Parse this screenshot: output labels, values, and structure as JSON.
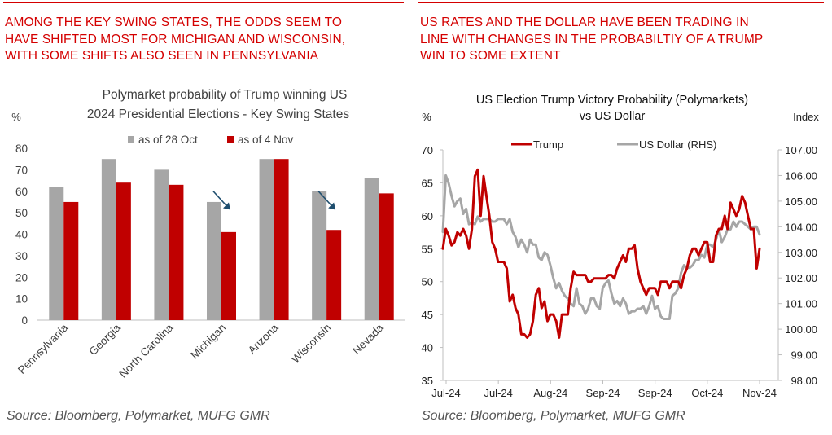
{
  "left_panel": {
    "headline": [
      "AMONG THE KEY SWING STATES, THE ODDS SEEM TO",
      "HAVE SHIFTED MOST FOR MICHIGAN AND WISCONSIN,",
      "WITH SOME SHIFTS ALSO SEEN IN PENNSYLVANIA"
    ],
    "source": "Source: Bloomberg, Polymarket, MUFG GMR"
  },
  "right_panel": {
    "headline": [
      "US RATES AND THE DOLLAR HAVE BEEN TRADING IN",
      "LINE WITH CHANGES IN THE PROBABILTIY OF A TRUMP",
      "WIN TO SOME EXTENT"
    ],
    "source": "Source: Bloomberg, Polymarket, MUFG GMR"
  },
  "colors": {
    "accent": "#d40000",
    "series_grey": "#a6a6a6",
    "series_red": "#c00000",
    "arrow": "#1f4e6e"
  },
  "chart_data": [
    {
      "type": "bar",
      "title": [
        "Polymarket probability of Trump winning US",
        "2024 Presidential Elections - Key Swing States"
      ],
      "ylabel": "%",
      "ylim": [
        0,
        80
      ],
      "yticks": [
        0,
        10,
        20,
        30,
        40,
        50,
        60,
        70,
        80
      ],
      "categories": [
        "Pennsylvania",
        "Georgia",
        "North Carolina",
        "Michigan",
        "Arizona",
        "Wisconsin",
        "Nevada"
      ],
      "series": [
        {
          "name": "as of 28 Oct",
          "color": "#a6a6a6",
          "values": [
            62,
            75,
            70,
            55,
            75,
            60,
            66
          ]
        },
        {
          "name": "as of 4 Nov",
          "color": "#c00000",
          "values": [
            55,
            64,
            63,
            41,
            75,
            42,
            59
          ]
        }
      ],
      "legend": "top",
      "annotations": [
        {
          "type": "down-arrow",
          "category": "Michigan"
        },
        {
          "type": "down-arrow",
          "category": "Wisconsin"
        }
      ]
    },
    {
      "type": "line",
      "title": [
        "US Election Trump Victory Probability (Polymarkets)",
        "vs US Dollar"
      ],
      "ylabel_right": "Index",
      "ylim_left": [
        35,
        70
      ],
      "yticks_left": [
        35,
        40,
        45,
        50,
        55,
        60,
        65,
        70
      ],
      "ylim_right": [
        98.0,
        107.0
      ],
      "yticks_right": [
        "98.00",
        "99.00",
        "100.00",
        "101.00",
        "102.00",
        "103.00",
        "104.00",
        "105.00",
        "106.00",
        "107.00"
      ],
      "x_tick_labels": [
        "Jul-24",
        "Jul-24",
        "Aug-24",
        "Sep-24",
        "Sep-24",
        "Oct-24",
        "Nov-24"
      ],
      "legend": "top",
      "series": [
        {
          "name": "Trump",
          "axis": "left",
          "color": "#c00000",
          "values": [
            55,
            58,
            57,
            55.5,
            56,
            57.5,
            57,
            58,
            57,
            55,
            58,
            66,
            67,
            60,
            66,
            63,
            60,
            56,
            55,
            53,
            53,
            53,
            52,
            47,
            48,
            46,
            45,
            42,
            42,
            41.5,
            42,
            44,
            48,
            49,
            46,
            47,
            44,
            45,
            45,
            44,
            41.5,
            45,
            45,
            45,
            49,
            51.5,
            51,
            51,
            51,
            51,
            50,
            50,
            50.5,
            50.5,
            50.5,
            50.5,
            50.5,
            51,
            51,
            50.5,
            52,
            53,
            54,
            53,
            55,
            55,
            55.5,
            52,
            50,
            49,
            48,
            49,
            49,
            49,
            48,
            50,
            50,
            50,
            49,
            50,
            50,
            50,
            49,
            51,
            52,
            54,
            55,
            55,
            54,
            55,
            56,
            56,
            53,
            53,
            57,
            58,
            58,
            60,
            58,
            62,
            61,
            60,
            61,
            63,
            62,
            60,
            58,
            58,
            52,
            55
          ]
        },
        {
          "name": "US Dollar (RHS)",
          "axis": "right",
          "color": "#a6a6a6",
          "values": [
            103.8,
            106.0,
            105.7,
            105.2,
            104.8,
            105.0,
            105.1,
            104.5,
            104.7,
            104.1,
            104.2,
            104.1,
            104.4,
            104.2,
            104.3,
            104.3,
            104.3,
            104.2,
            104.2,
            104.3,
            104.3,
            104.3,
            104.1,
            104.3,
            103.8,
            103.6,
            103.2,
            103.5,
            103.3,
            103.0,
            103.5,
            103.3,
            103.3,
            102.8,
            102.7,
            103.0,
            102.9,
            102.5,
            102.0,
            101.6,
            101.8,
            101.5,
            101.3,
            101.2,
            101.0,
            100.9,
            101.6,
            101.0,
            100.9,
            100.6,
            100.8,
            101.2,
            101.2,
            100.9,
            100.8,
            101.6,
            101.8,
            101.9,
            101.4,
            101.0,
            101.1,
            100.9,
            101.2,
            101.0,
            100.6,
            100.7,
            100.7,
            100.8,
            100.8,
            100.9,
            100.6,
            100.9,
            101.3,
            100.8,
            100.9,
            100.5,
            100.4,
            100.4,
            100.4,
            101.3,
            101.4,
            101.6,
            102.2,
            102.5,
            102.4,
            102.4,
            102.5,
            102.7,
            102.7,
            102.9,
            102.8,
            103.3,
            103.3,
            103.2,
            103.5,
            103.9,
            103.4,
            103.6,
            103.9,
            103.9,
            104.2,
            104.0,
            104.2,
            104.2,
            104.1,
            104.0,
            103.9,
            104.0,
            104.0,
            103.7
          ]
        }
      ]
    }
  ]
}
